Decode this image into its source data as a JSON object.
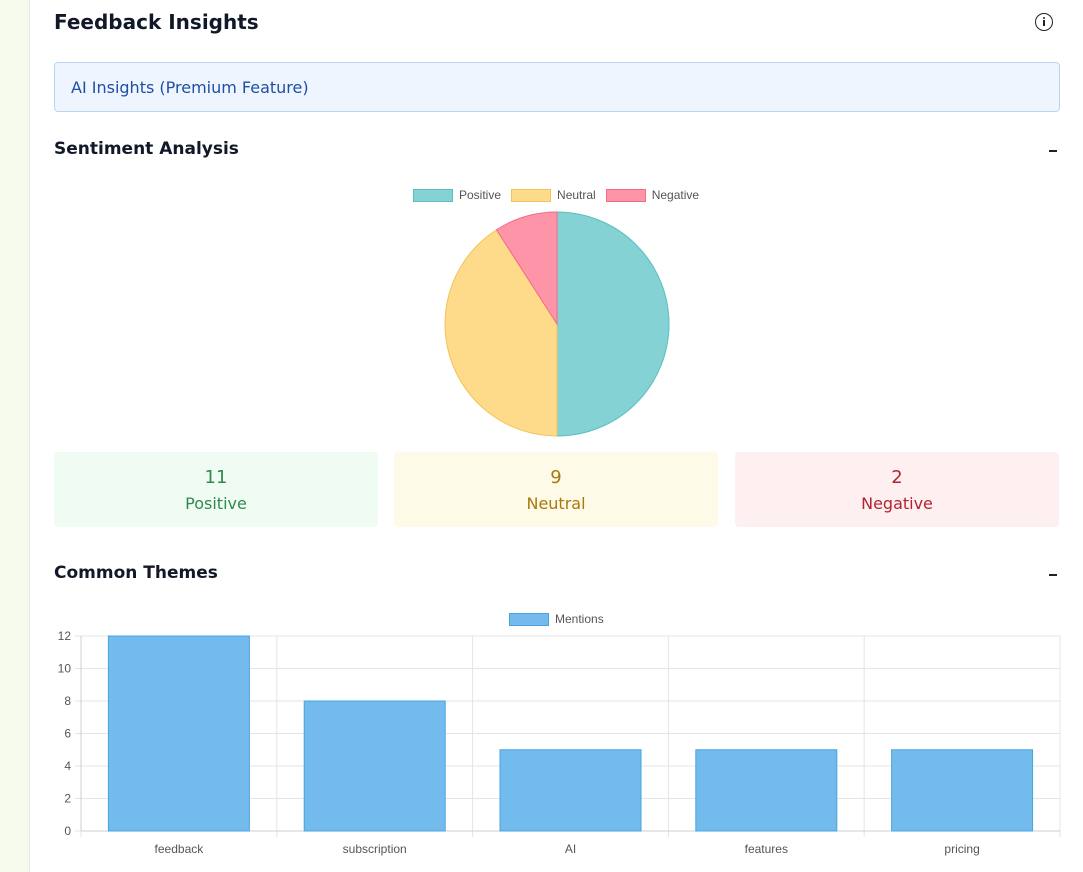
{
  "header": {
    "title": "Feedback Insights",
    "info_icon": "info-circle-icon"
  },
  "premium": {
    "label": "AI Insights (Premium Feature)"
  },
  "sentiment": {
    "title": "Sentiment Analysis",
    "collapse_icon": "minus-icon",
    "stats": [
      {
        "value": "11",
        "label": "Positive"
      },
      {
        "value": "9",
        "label": "Neutral"
      },
      {
        "value": "2",
        "label": "Negative"
      }
    ]
  },
  "themes": {
    "title": "Common Themes",
    "collapse_icon": "minus-icon"
  },
  "colors": {
    "positive": "#84d2d3",
    "positive_border": "#5bbfc0",
    "neutral": "#fddb8a",
    "neutral_border": "#f2c35c",
    "negative": "#fe94a8",
    "negative_border": "#f26a86",
    "bar": "#73bbed",
    "bar_border": "#4aa3e0",
    "positive_card_bg": "#f0fbf3",
    "positive_text": "#2e8b4e",
    "neutral_card_bg": "#fefae8",
    "neutral_text": "#a8780c",
    "negative_card_bg": "#fef0f1",
    "negative_text": "#b4222f"
  },
  "chart_data": [
    {
      "type": "pie",
      "labels": [
        "Positive",
        "Neutral",
        "Negative"
      ],
      "values": [
        11,
        9,
        2
      ],
      "legend": "top"
    },
    {
      "type": "bar",
      "categories": [
        "feedback",
        "subscription",
        "AI",
        "features",
        "pricing"
      ],
      "series": [
        {
          "name": "Mentions",
          "values": [
            12,
            8,
            5,
            5,
            5
          ]
        }
      ],
      "ylim": [
        0,
        12
      ],
      "yticks": [
        "0",
        "2",
        "4",
        "6",
        "8",
        "10",
        "12"
      ],
      "grid": true,
      "legend": "top"
    }
  ]
}
